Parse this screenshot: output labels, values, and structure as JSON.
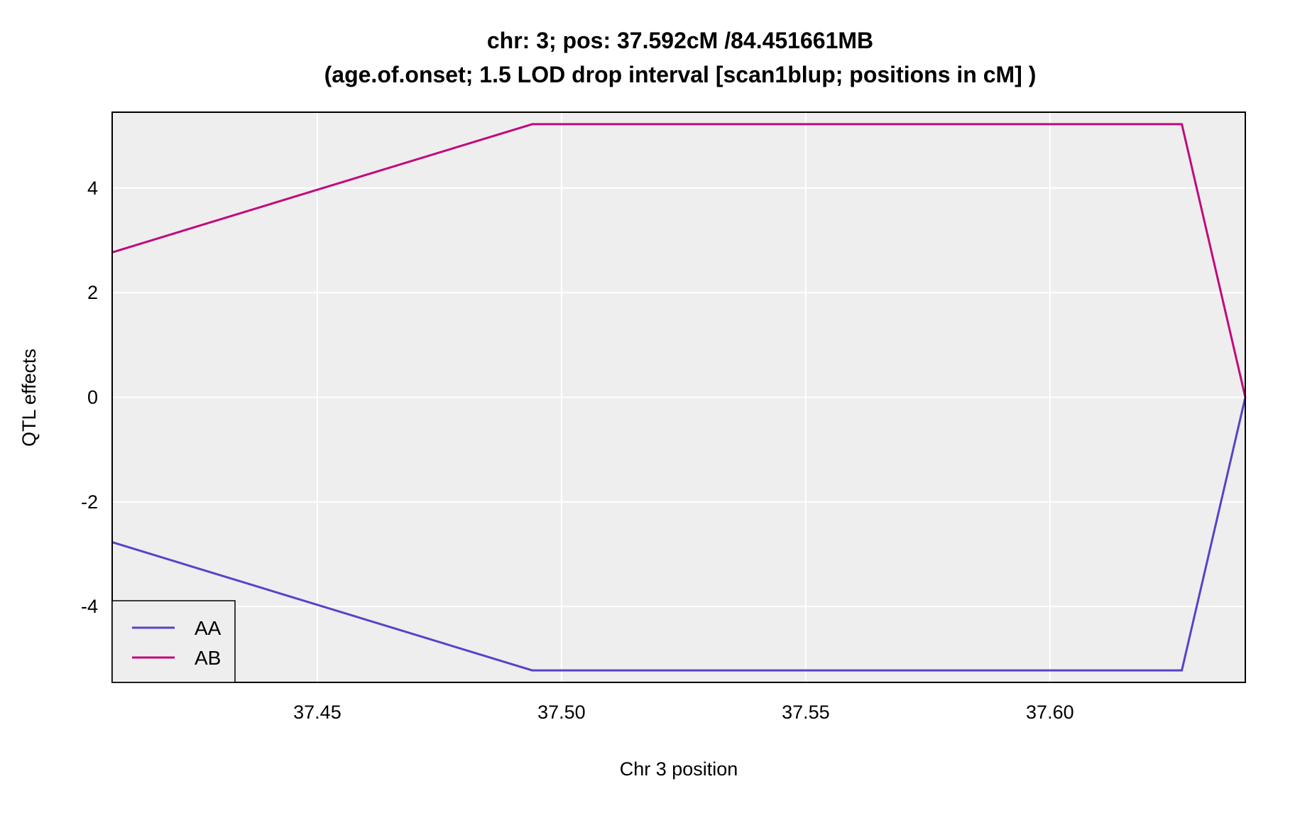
{
  "chart_data": {
    "type": "line",
    "title_line1": "chr: 3; pos: 37.592cM /84.451661MB",
    "title_line2": "(age.of.onset; 1.5 LOD drop interval [scan1blup; positions in cM] )",
    "xlabel": "Chr 3 position",
    "ylabel": "QTL effects",
    "xlim": [
      37.408,
      37.64
    ],
    "ylim": [
      -5.45,
      5.45
    ],
    "x_ticks": [
      37.45,
      37.5,
      37.55,
      37.6
    ],
    "x_tick_labels": [
      "37.45",
      "37.50",
      "37.55",
      "37.60"
    ],
    "y_ticks": [
      -4,
      -2,
      0,
      2,
      4
    ],
    "y_tick_labels": [
      "-4",
      "-2",
      "0",
      "2",
      "4"
    ],
    "grid": true,
    "legend_position": "bottom-left",
    "panel_color": "#eeeeee",
    "series": [
      {
        "name": "AA",
        "color": "#5544c8",
        "x": [
          37.408,
          37.494,
          37.627,
          37.64
        ],
        "y": [
          -2.77,
          -5.22,
          -5.22,
          0
        ]
      },
      {
        "name": "AB",
        "color": "#c2087c",
        "x": [
          37.408,
          37.494,
          37.627,
          37.64
        ],
        "y": [
          2.77,
          5.22,
          5.22,
          0
        ]
      }
    ]
  }
}
